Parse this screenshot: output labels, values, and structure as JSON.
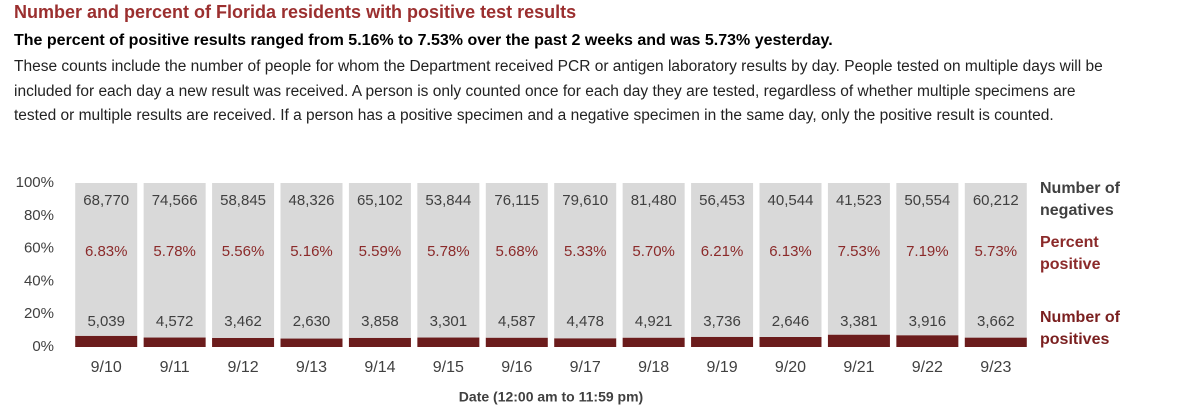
{
  "header": {
    "title": "Number and percent of Florida residents with positive test results",
    "subtitle": "The percent of positive results ranged from 5.16% to 7.53% over the past 2 weeks and was 5.73% yesterday.",
    "description": "These counts include the number of people for whom the Department received PCR or antigen laboratory results by day. People tested on multiple days will be included for each day a new result was received. A person is only counted once for each day they are tested, regardless of whether multiple specimens are tested or multiple results are received. If a person has a positive specimen and a negative specimen in the same day, only the positive result is counted."
  },
  "chart_data": {
    "type": "stacked_percent_bar",
    "x_label": "Date (12:00 am to 11:59 pm)",
    "categories": [
      "9/10",
      "9/11",
      "9/12",
      "9/13",
      "9/14",
      "9/15",
      "9/16",
      "9/17",
      "9/18",
      "9/19",
      "9/20",
      "9/21",
      "9/22",
      "9/23"
    ],
    "series": [
      {
        "name": "Number of positives",
        "color": "#6b1c1c",
        "label_color": "#404040",
        "legend_color": "#7a1f1f",
        "values": [
          5039,
          4572,
          3462,
          2630,
          3858,
          3301,
          4587,
          4478,
          4921,
          3736,
          2646,
          3381,
          3916,
          3662
        ],
        "value_labels": [
          "5,039",
          "4,572",
          "3,462",
          "2,630",
          "3,858",
          "3,301",
          "4,587",
          "4,478",
          "4,921",
          "3,736",
          "2,646",
          "3,381",
          "3,916",
          "3,662"
        ]
      },
      {
        "name": "Number of negatives",
        "color": "#d9d9d9",
        "label_color": "#404040",
        "legend_color": "#404040",
        "values": [
          68770,
          74566,
          58845,
          48326,
          65102,
          53844,
          76115,
          79610,
          81480,
          56453,
          40544,
          41523,
          50554,
          60212
        ],
        "value_labels": [
          "68,770",
          "74,566",
          "58,845",
          "48,326",
          "65,102",
          "53,844",
          "76,115",
          "79,610",
          "81,480",
          "56,453",
          "40,544",
          "41,523",
          "50,554",
          "60,212"
        ]
      }
    ],
    "percent_positive": {
      "name": "Percent positive",
      "color": "#8b2a2a",
      "values": [
        6.83,
        5.78,
        5.56,
        5.16,
        5.59,
        5.78,
        5.68,
        5.33,
        5.7,
        6.21,
        6.13,
        7.53,
        7.19,
        5.73
      ],
      "value_labels": [
        "6.83%",
        "5.78%",
        "5.56%",
        "5.16%",
        "5.59%",
        "5.78%",
        "5.68%",
        "5.33%",
        "5.70%",
        "6.21%",
        "6.13%",
        "7.53%",
        "7.19%",
        "5.73%"
      ]
    },
    "ylim": [
      0,
      100
    ],
    "yticks": [
      {
        "value": 0,
        "label": "0%"
      },
      {
        "value": 20,
        "label": "20%"
      },
      {
        "value": 40,
        "label": "40%"
      },
      {
        "value": 60,
        "label": "60%"
      },
      {
        "value": 80,
        "label": "80%"
      },
      {
        "value": 100,
        "label": "100%"
      }
    ],
    "grid": false
  }
}
